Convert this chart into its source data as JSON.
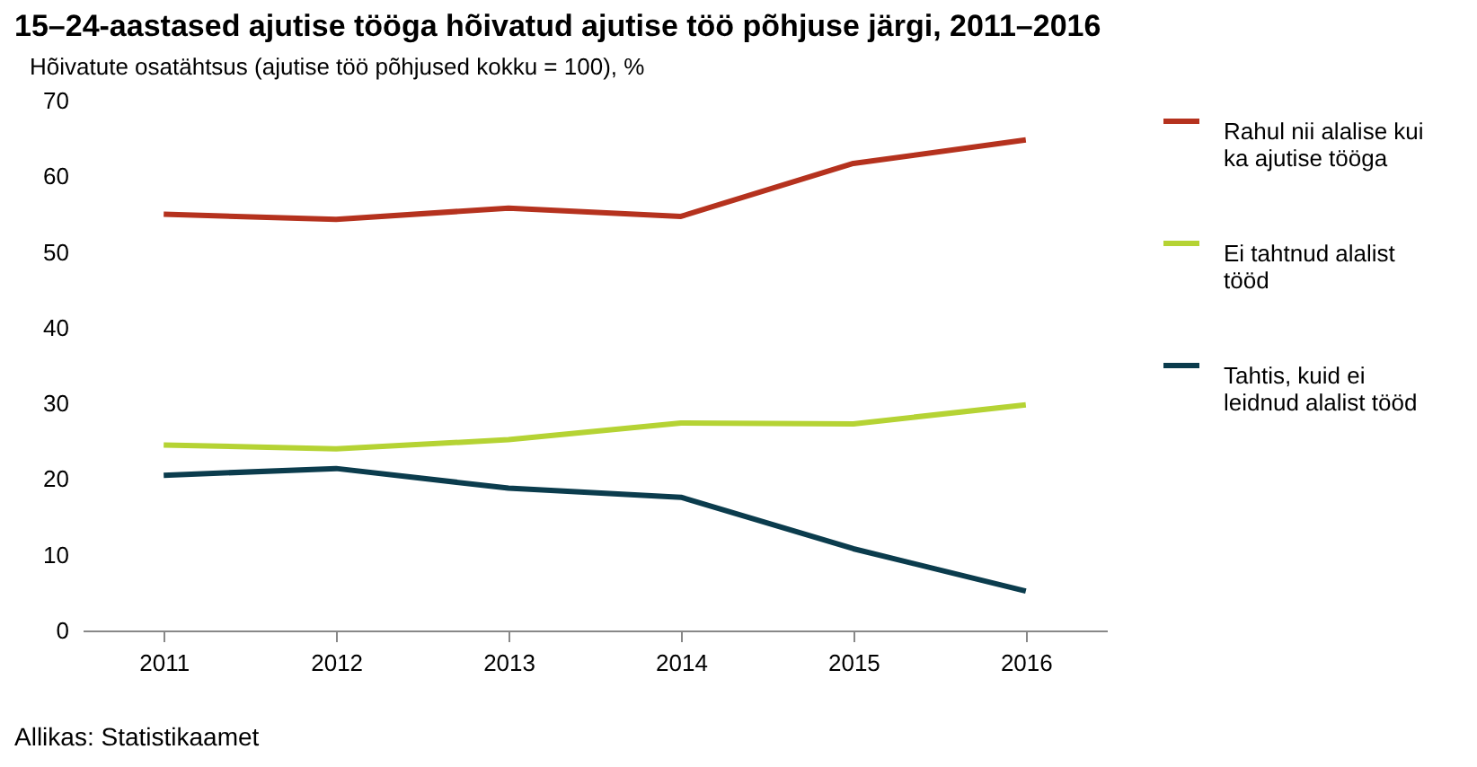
{
  "chart_data": {
    "type": "line",
    "title": "15–24-aastased ajutise tööga hõivatud ajutise töö põhjuse järgi, 2011–2016",
    "ylabel": "Hõivatute osatähtsus (ajutise töö põhjused kokku = 100), %",
    "categories": [
      "2011",
      "2012",
      "2013",
      "2014",
      "2015",
      "2016"
    ],
    "ylim": [
      0,
      70
    ],
    "yticks": [
      0,
      10,
      20,
      30,
      40,
      50,
      60,
      70
    ],
    "grid": false,
    "legend": "right",
    "marker": "none",
    "line_style": "solid",
    "annotations": [
      "Allikas: Statistikaamet"
    ],
    "series": [
      {
        "name": "Rahul nii alalise kui ka ajutise tööga",
        "color": "#b5321e",
        "values": [
          55,
          54.3,
          55.8,
          54.7,
          61.7,
          64.8
        ]
      },
      {
        "name": "Ei tahtnud alalist tööd",
        "color": "#b5d334",
        "values": [
          24.5,
          24,
          25.2,
          27.4,
          27.3,
          29.8
        ]
      },
      {
        "name": "Tahtis, kuid ei leidnud alalist tööd",
        "color": "#0b3c4d",
        "values": [
          20.5,
          21.4,
          18.8,
          17.6,
          10.8,
          5.2
        ]
      }
    ]
  }
}
